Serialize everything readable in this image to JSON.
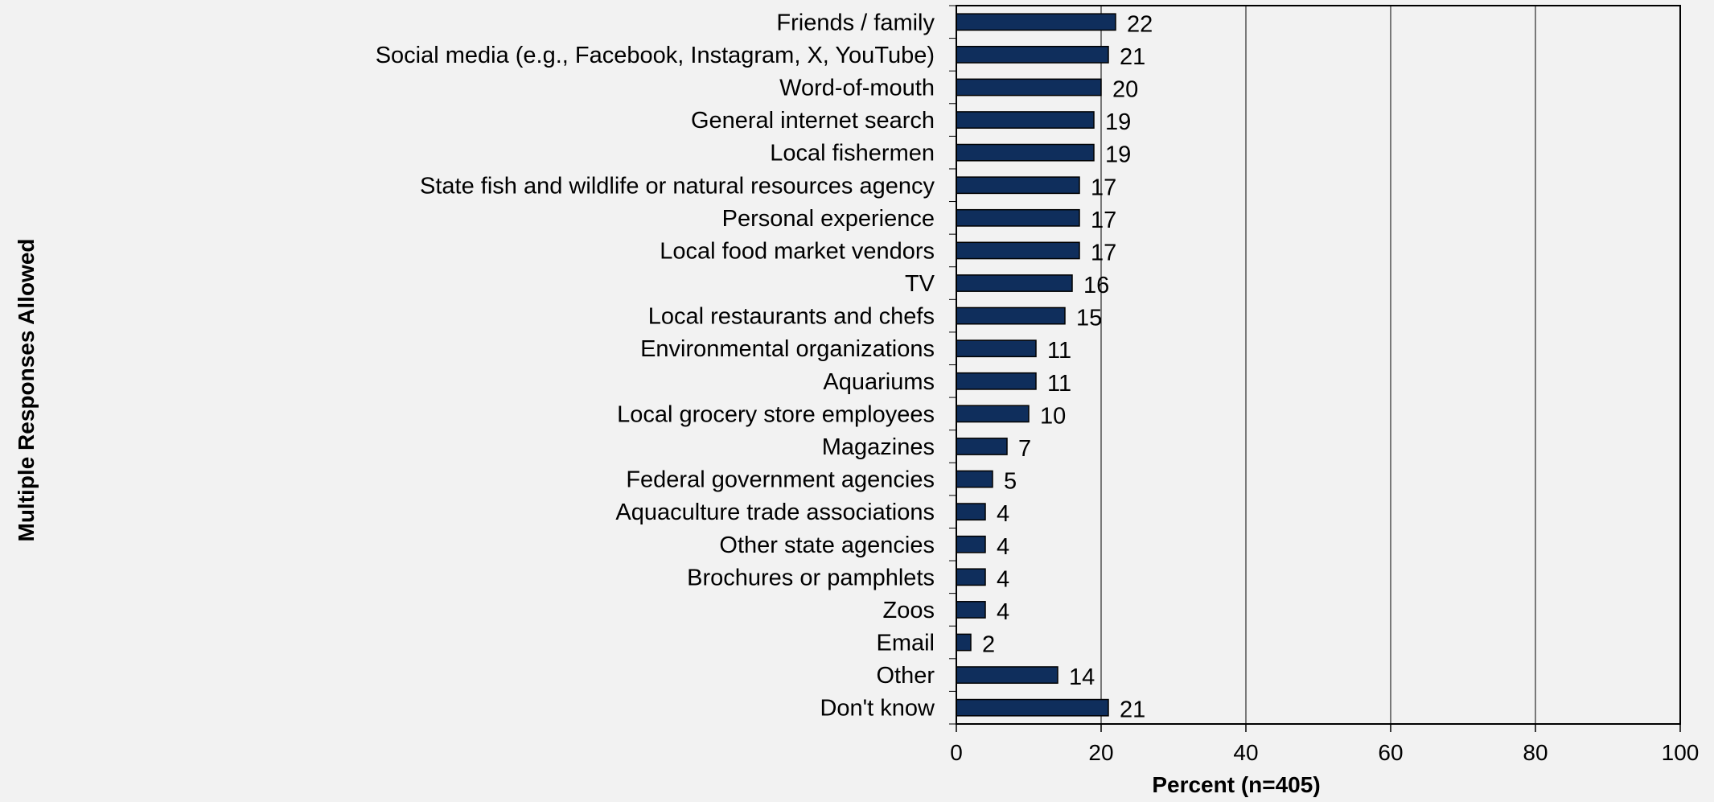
{
  "chart_data": {
    "type": "bar",
    "orientation": "horizontal",
    "title": "",
    "xlabel": "Percent (n=405)",
    "ylabel": "Multiple Responses Allowed",
    "xlim": [
      0,
      100
    ],
    "xticks": [
      "0",
      "20",
      "40",
      "60",
      "80",
      "100"
    ],
    "grid": "vertical major gridlines",
    "legend": "none",
    "bar_color": "#0f2e5c",
    "categories": [
      "Friends / family",
      "Social media (e.g., Facebook, Instagram, X, YouTube)",
      "Word-of-mouth",
      "General internet search",
      "Local fishermen",
      "State fish and wildlife or natural resources agency",
      "Personal experience",
      "Local food market vendors",
      "TV",
      "Local restaurants and chefs",
      "Environmental organizations",
      "Aquariums",
      "Local grocery store employees",
      "Magazines",
      "Federal government agencies",
      "Aquaculture trade associations",
      "Other state agencies",
      "Brochures or pamphlets",
      "Zoos",
      "Email",
      "Other",
      "Don't know"
    ],
    "values": [
      22,
      21,
      20,
      19,
      19,
      17,
      17,
      17,
      16,
      15,
      11,
      11,
      10,
      7,
      5,
      4,
      4,
      4,
      4,
      2,
      14,
      21
    ],
    "data_labels": [
      "22",
      "21",
      "20",
      "19",
      "19",
      "17",
      "17",
      "17",
      "16",
      "15",
      "11",
      "11",
      "10",
      "7",
      "5",
      "4",
      "4",
      "4",
      "4",
      "2",
      "14",
      "21"
    ]
  }
}
